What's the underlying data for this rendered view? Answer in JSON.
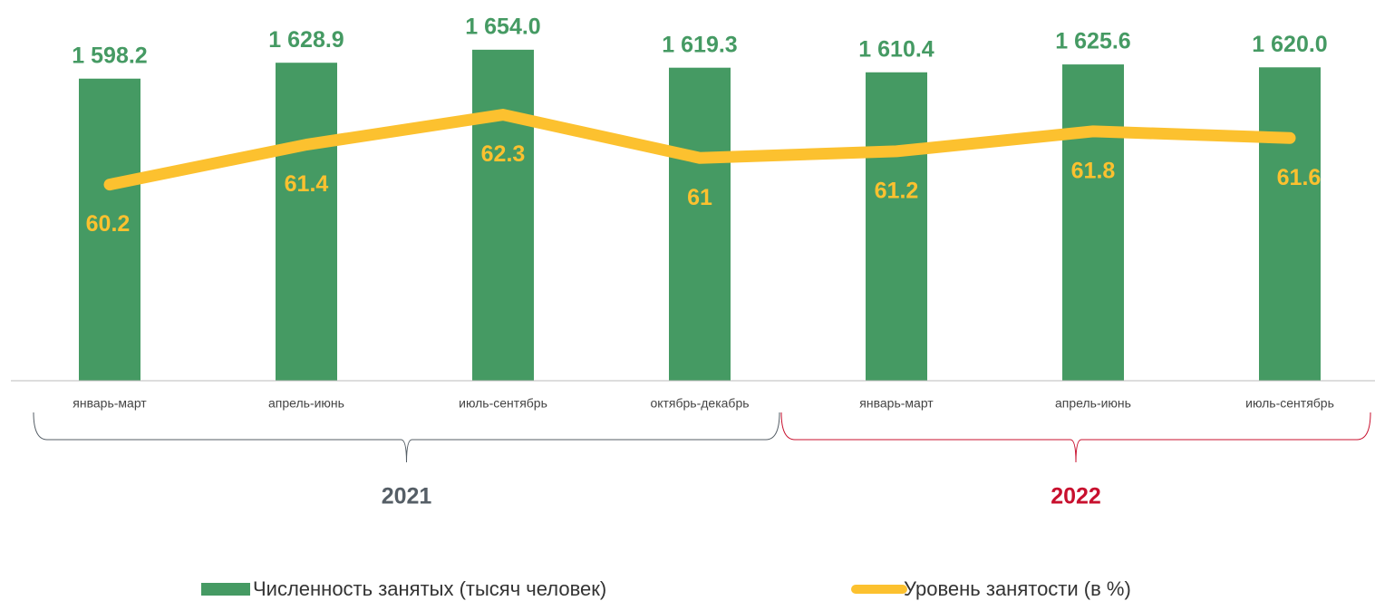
{
  "chart_data": {
    "type": "bar",
    "categories": [
      "январь-март",
      "апрель-июнь",
      "июль-сентябрь",
      "октябрь-декабрь",
      "январь-март",
      "апрель-июнь",
      "июль-сентябрь"
    ],
    "groups": [
      {
        "name": "2021",
        "color": "#555e66"
      },
      {
        "name": "2022",
        "color": "#c8102e"
      }
    ],
    "series": [
      {
        "name": "Численность занятых (тысяч человек)",
        "type": "bar",
        "color": "#459a63",
        "values": [
          1598.2,
          1628.9,
          1654.0,
          1619.3,
          1610.4,
          1625.6,
          1620.0
        ],
        "value_labels": [
          "1 598.2",
          "1 628.9",
          "1 654.0",
          "1 619.3",
          "1 610.4",
          "1 625.6",
          "1 620.0"
        ]
      },
      {
        "name": "Уровень занятости (в %)",
        "type": "line",
        "axis": "y2",
        "color": "#fcc12f",
        "values": [
          60.2,
          61.4,
          62.3,
          61.0,
          61.2,
          61.8,
          61.6
        ]
      }
    ],
    "ylim": [
      1015,
      1750
    ],
    "y2lim": [
      54.3,
      65.75
    ],
    "legend": "bottom"
  }
}
